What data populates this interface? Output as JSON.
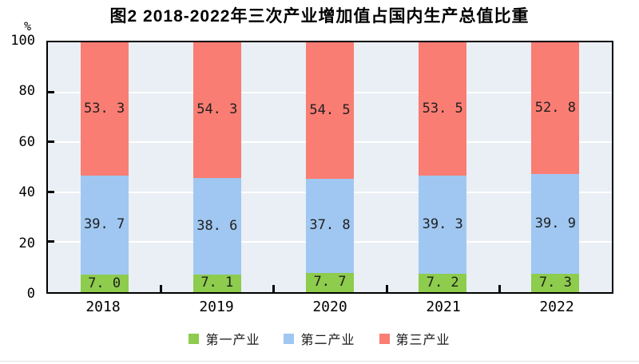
{
  "figure": {
    "unit_label": "%"
  },
  "chart_data": {
    "type": "bar",
    "stacked": true,
    "title": "图2 2018-2022年三次产业增加值占国内生产总值比重",
    "categories": [
      "2018",
      "2019",
      "2020",
      "2021",
      "2022"
    ],
    "series": [
      {
        "name": "第一产业",
        "color": "#8DCC4C",
        "values": [
          7.0,
          7.1,
          7.7,
          7.2,
          7.3
        ]
      },
      {
        "name": "第二产业",
        "color": "#A0C7F1",
        "values": [
          39.7,
          38.6,
          37.8,
          39.3,
          39.9
        ]
      },
      {
        "name": "第三产业",
        "color": "#F97D73",
        "values": [
          53.3,
          54.3,
          54.5,
          53.5,
          52.8
        ]
      }
    ],
    "ylabel": "%",
    "ylim": [
      0,
      100
    ],
    "yticks": [
      0,
      20,
      40,
      60,
      80,
      100
    ],
    "grid": true,
    "grid_color": "#FFFFFF",
    "plot_bg": "#E9EFF4",
    "value_label_decimals": 1,
    "legend_position": "bottom"
  }
}
